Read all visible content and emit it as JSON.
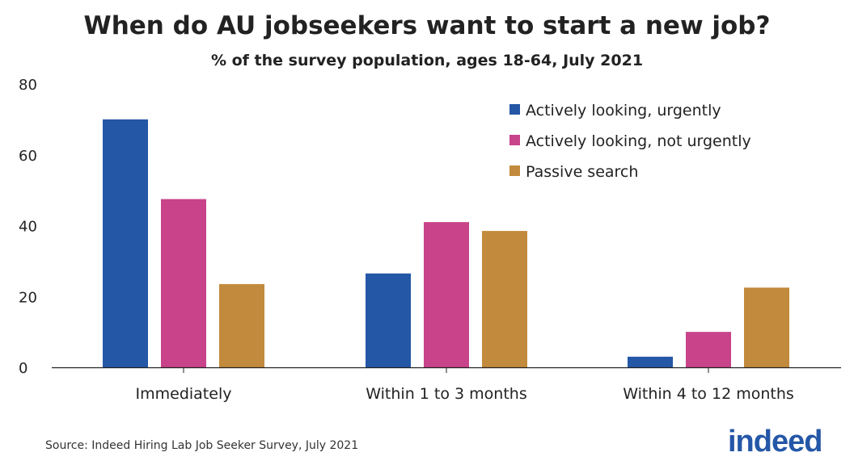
{
  "title": "When do AU jobseekers want to start a new job?",
  "subtitle": "% of the survey population,  ages 18-64, July 2021",
  "source": "Source: Indeed Hiring Lab Job Seeker Survey, July 2021",
  "logo_text": "indeed",
  "colors": {
    "urgent": "#2457a5",
    "not_urgent": "#c8438a",
    "passive": "#c28a3c",
    "text": "#222222",
    "axis": "#222222",
    "logo": "#2557a7"
  },
  "chart_data": {
    "type": "bar",
    "categories": [
      "Immediately",
      "Within 1 to 3 months",
      "Within 4 to 12 months"
    ],
    "series": [
      {
        "name": "Actively looking, urgently",
        "color": "#2457a5",
        "values": [
          70,
          26.5,
          3
        ]
      },
      {
        "name": "Actively looking, not urgently",
        "color": "#c8438a",
        "values": [
          47.5,
          41,
          10
        ]
      },
      {
        "name": "Passive search",
        "color": "#c28a3c",
        "values": [
          23.5,
          38.5,
          22.5
        ]
      }
    ],
    "yticks": [
      0,
      20,
      40,
      60,
      80
    ],
    "ylim": [
      0,
      80
    ],
    "xlabel": "",
    "ylabel": "",
    "grid": false,
    "legend": "top-right"
  }
}
